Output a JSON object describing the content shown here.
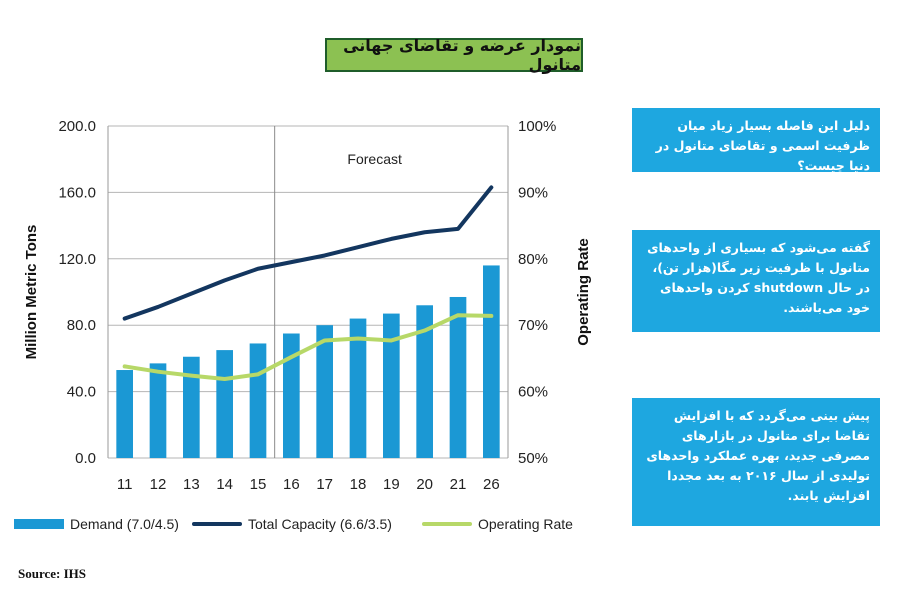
{
  "title": "نمودار عرضه و تقاضای جهانی متانول",
  "source": "Source: IHS",
  "info_boxes": [
    "دلیل این فاصله بسیار زیاد میان ظرفیت اسمی و تقاضای متانول در دنیا چیست؟",
    "گفته می‌شود که بسیاری از واحدهای متانول با ظرفیت زیر مگا(هزار تن)، در حال shutdown کردن واحدهای خود می‌باشند.",
    "پیش بینی می‌گردد که با افزایش تقاضا برای متانول در بازارهای مصرفی جدید، بهره عملکرد واحدهای تولیدی از سال ۲۰۱۶ به بعد مجددا افزایش یابند."
  ],
  "colors": {
    "demand": "#1b98d4",
    "capacity": "#13365f",
    "rate": "#b7d868",
    "title_bg": "#8cc152",
    "box_bg": "#1ea7e0"
  },
  "chart_data": {
    "type": "bar+line",
    "categories": [
      "11",
      "12",
      "13",
      "14",
      "15",
      "16",
      "17",
      "18",
      "19",
      "20",
      "21",
      "26"
    ],
    "forecast_label": "Forecast",
    "forecast_start_after": "15",
    "ylabel": "Million Metric Tons",
    "y2label": "Operating Rate",
    "ylim": [
      0,
      200
    ],
    "yticks": [
      "0.0",
      "40.0",
      "80.0",
      "120.0",
      "160.0",
      "200.0"
    ],
    "y2lim": [
      50,
      100
    ],
    "y2ticks": [
      "50%",
      "60%",
      "70%",
      "80%",
      "90%",
      "100%"
    ],
    "grid": "horizontal",
    "series": [
      {
        "name": "Demand (7.0/4.5)",
        "kind": "bar",
        "axis": "left",
        "values": [
          53,
          57,
          61,
          65,
          69,
          75,
          80,
          84,
          87,
          92,
          97,
          116
        ]
      },
      {
        "name": "Total Capacity (6.6/3.5)",
        "kind": "line",
        "axis": "left",
        "values": [
          84,
          91,
          99,
          107,
          114,
          118,
          122,
          127,
          132,
          136,
          138,
          163
        ]
      },
      {
        "name": "Operating Rate",
        "kind": "line",
        "axis": "right",
        "values": [
          63.8,
          63.0,
          62.4,
          61.9,
          62.6,
          65.2,
          67.7,
          68.0,
          67.7,
          69.2,
          71.5,
          71.4
        ]
      }
    ]
  }
}
